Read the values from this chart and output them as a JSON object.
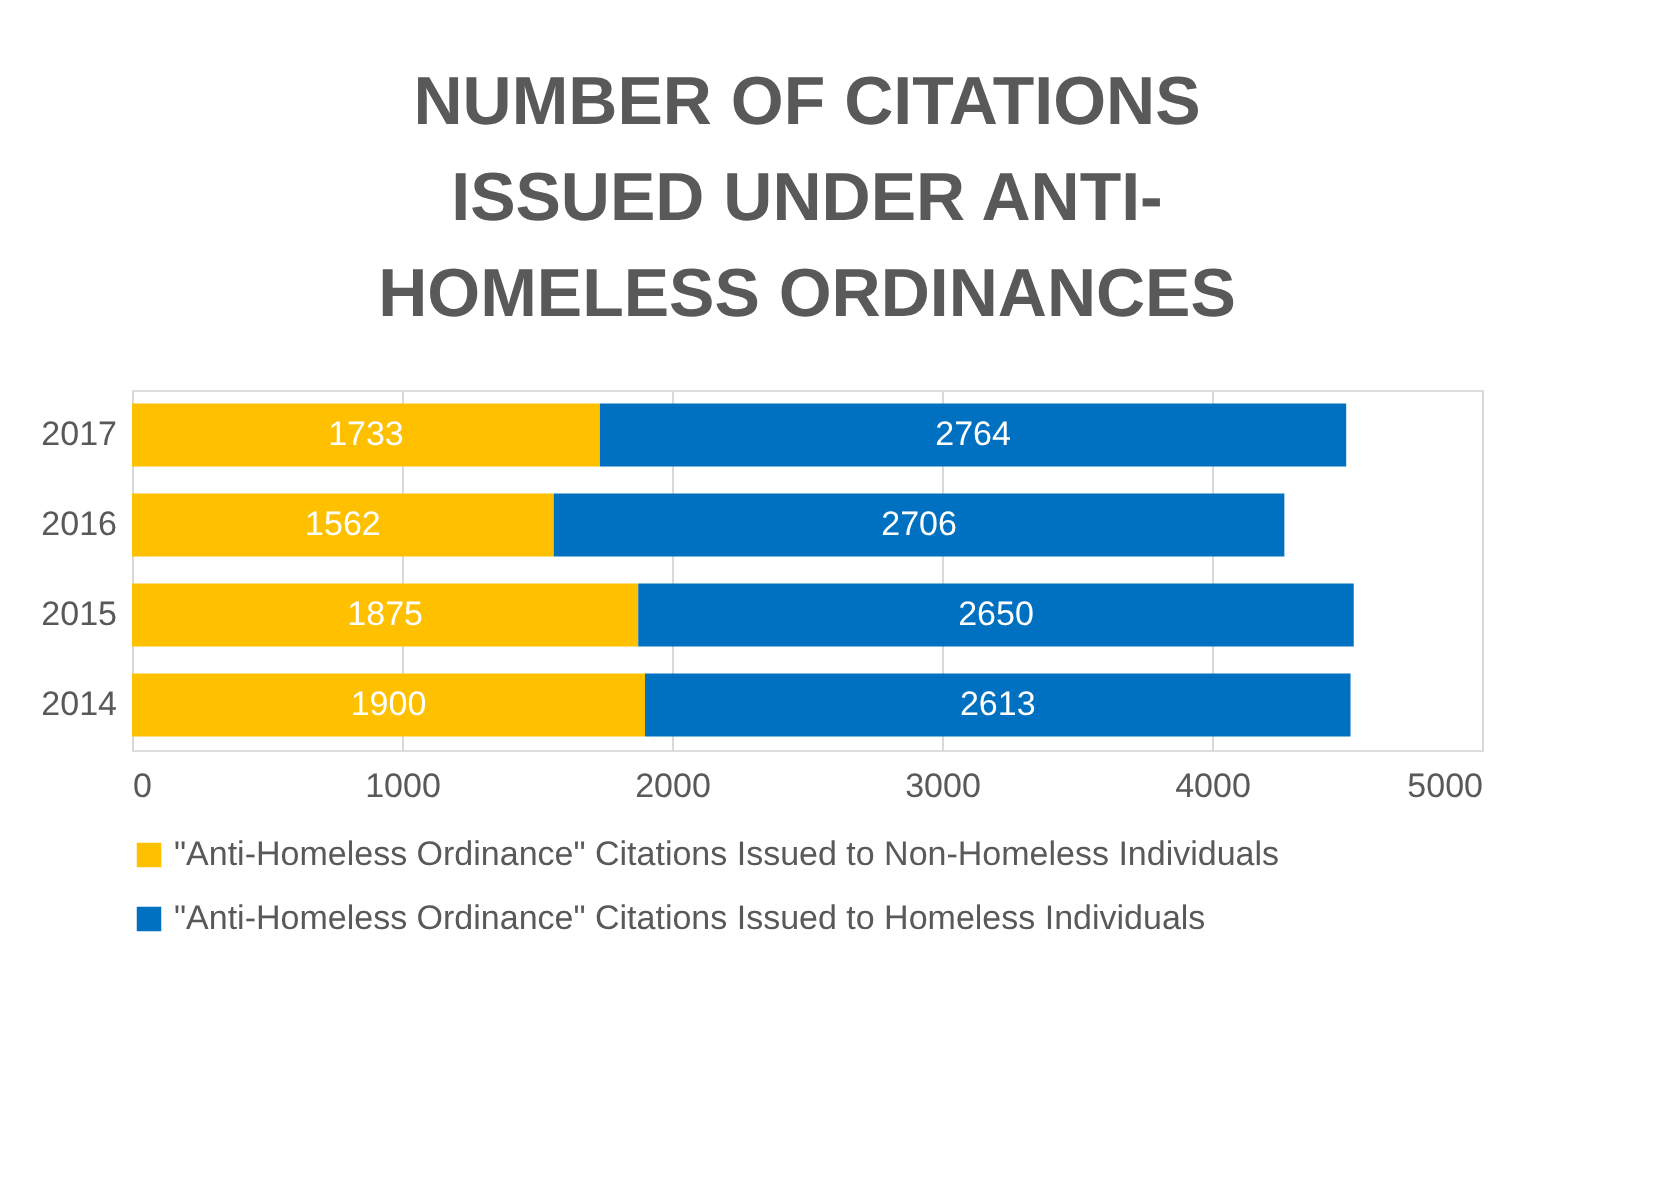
{
  "chart_data": {
    "type": "bar",
    "orientation": "horizontal",
    "stacked": true,
    "title": "NUMBER OF CITATIONS ISSUED UNDER ANTI-HOMELESS ORDINANCES",
    "categories": [
      "2017",
      "2016",
      "2015",
      "2014"
    ],
    "series": [
      {
        "name": "\"Anti-Homeless Ordinance\" Citations Issued to Non-Homeless Individuals",
        "color": "#ffc000",
        "values": [
          1733,
          1562,
          1875,
          1900
        ]
      },
      {
        "name": "\"Anti-Homeless Ordinance\" Citations Issued to Homeless Individuals",
        "color": "#0070c0",
        "values": [
          2764,
          2706,
          2650,
          2613
        ]
      }
    ],
    "xlim": [
      0,
      5000
    ],
    "xticks": [
      0,
      1000,
      2000,
      3000,
      4000,
      5000
    ],
    "grid": "x",
    "legend": "bottom",
    "data_labels": true
  }
}
